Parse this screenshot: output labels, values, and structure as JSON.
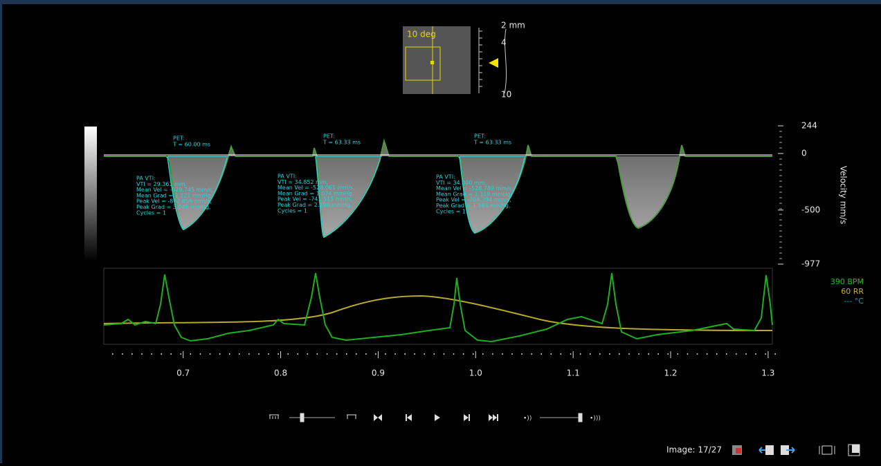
{
  "thumbnail": {
    "angle": "10 deg"
  },
  "depth_scale": {
    "unit_label": "2 mm",
    "labels": [
      "4",
      "10"
    ]
  },
  "doppler": {
    "axis_title": "Velocity mm/s",
    "range": [
      244,
      -977
    ],
    "ticks": [
      244,
      0,
      -500,
      -977
    ],
    "pet": [
      {
        "title": "PET:",
        "text": "T = 60.00 ms"
      },
      {
        "title": "PET:",
        "text": "T = 63.33 ms"
      },
      {
        "title": "PET:",
        "text": "T = 63.33 ms"
      }
    ],
    "measurements": [
      {
        "title": "PA VTI:",
        "lines": [
          "VTI = 29.361 mm,",
          "Mean Vel = -529.745 mm/s,",
          "Mean Grad = 1.121 mmHg,",
          "Peak Vel = -872.856 mm/s,",
          "Peak Grad = 3.046 mmHg,",
          "Cycles = 1"
        ]
      },
      {
        "title": "PA VTI:",
        "lines": [
          "VTI = 34.852 mm,",
          "Mean Vel = -528.061 mm/s,",
          "Mean Grad = 1.074 mmHg,",
          "Peak Vel = -741.515 mm/s,",
          "Peak Grad = 2.198 mmHg,",
          "Cycles = 1"
        ]
      },
      {
        "title": "PA VTI:",
        "lines": [
          "VTI = 34.000 mm,",
          "Mean Vel = -528.789 mm/s,",
          "Mean Grad = 1.118 mmHg,",
          "Peak Vel = -704.394 mm/s,",
          "Peak Grad = 1.984 mmHg,",
          "Cycles = 1"
        ]
      }
    ]
  },
  "ecg": {
    "bpm": "390 BPM",
    "rr": "60 RR",
    "temp": "--- °C"
  },
  "time_axis": {
    "range": [
      0.62,
      1.31
    ],
    "ticks": [
      0.7,
      0.8,
      0.9,
      {
        "value": 1,
        "label": "1.0"
      },
      1.1,
      1.2,
      1.3
    ]
  },
  "footer": {
    "image_counter": "Image: 17/27"
  }
}
